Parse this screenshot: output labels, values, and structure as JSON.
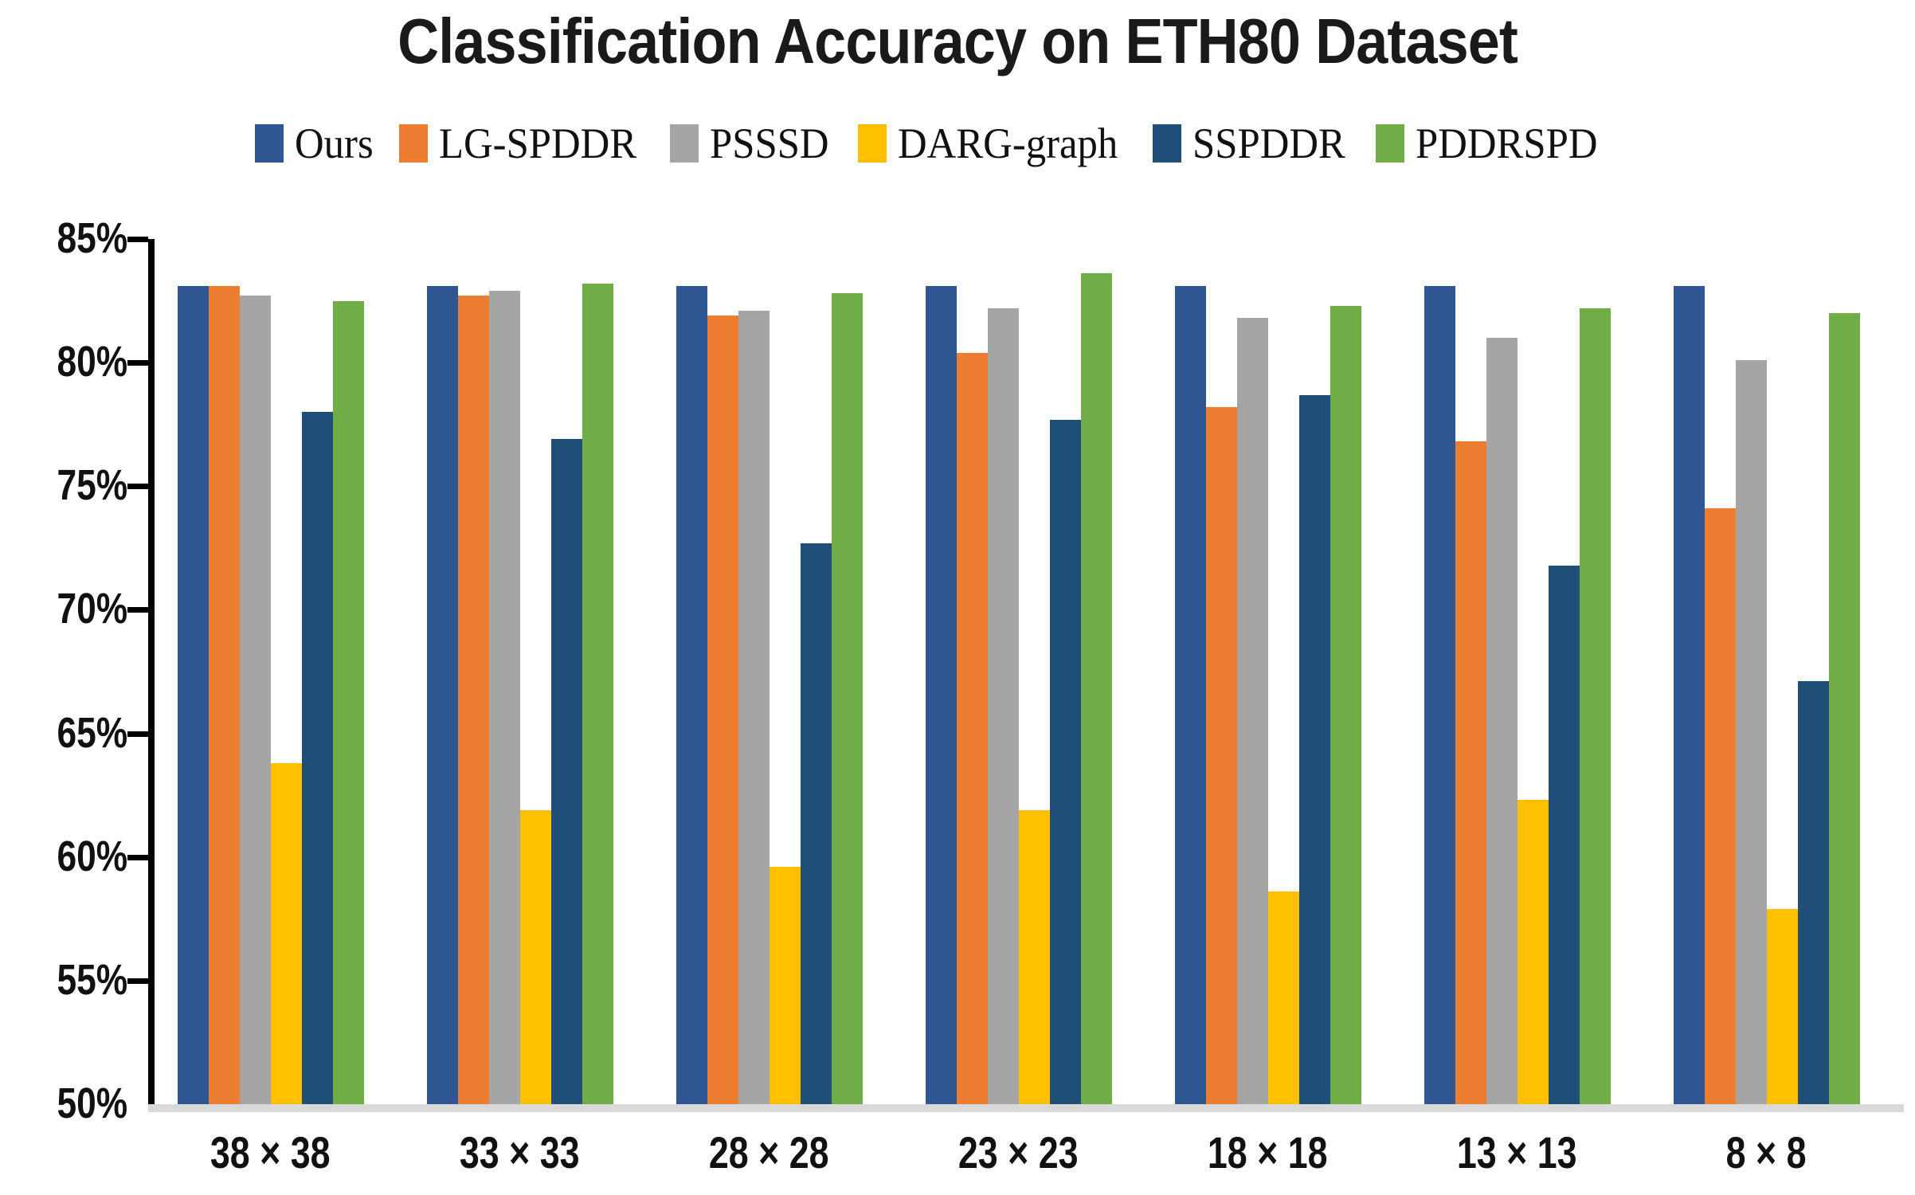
{
  "title": "Classification Accuracy on ETH80 Dataset",
  "chart_data": {
    "type": "bar",
    "title": "Classification Accuracy on ETH80 Dataset",
    "xlabel": "",
    "ylabel": "",
    "legend_position": "top",
    "grid": false,
    "y_axis": {
      "min": 50,
      "max": 85,
      "step": 5,
      "format": "percent",
      "tick_labels": [
        "85%",
        "80%",
        "75%",
        "70%",
        "65%",
        "60%",
        "55%",
        "50%"
      ]
    },
    "categories": [
      "38 × 38",
      "33 × 33",
      "28 × 28",
      "23 × 23",
      "18 × 18",
      "13 × 13",
      "8 × 8"
    ],
    "series": [
      {
        "name": "Ours",
        "color": "#2e5693",
        "values": [
          83.1,
          83.1,
          83.1,
          83.1,
          83.1,
          83.1,
          83.1
        ]
      },
      {
        "name": "LG-SPDDR",
        "color": "#ed7d31",
        "values": [
          83.1,
          82.7,
          81.9,
          80.4,
          78.2,
          76.8,
          74.1
        ]
      },
      {
        "name": "PSSSD",
        "color": "#a5a5a5",
        "values": [
          82.7,
          82.9,
          82.1,
          82.2,
          81.8,
          81.0,
          80.1
        ]
      },
      {
        "name": "DARG-graph",
        "color": "#ffc000",
        "values": [
          63.8,
          61.9,
          59.6,
          61.9,
          58.6,
          62.3,
          57.9
        ]
      },
      {
        "name": "SSPDDR",
        "color": "#1f4e79",
        "values": [
          78.0,
          76.9,
          72.7,
          77.7,
          78.7,
          71.8,
          67.1
        ]
      },
      {
        "name": "PDDRSPD",
        "color": "#70ad47",
        "values": [
          82.5,
          83.2,
          82.8,
          83.6,
          82.3,
          82.2,
          82.0
        ]
      }
    ]
  }
}
